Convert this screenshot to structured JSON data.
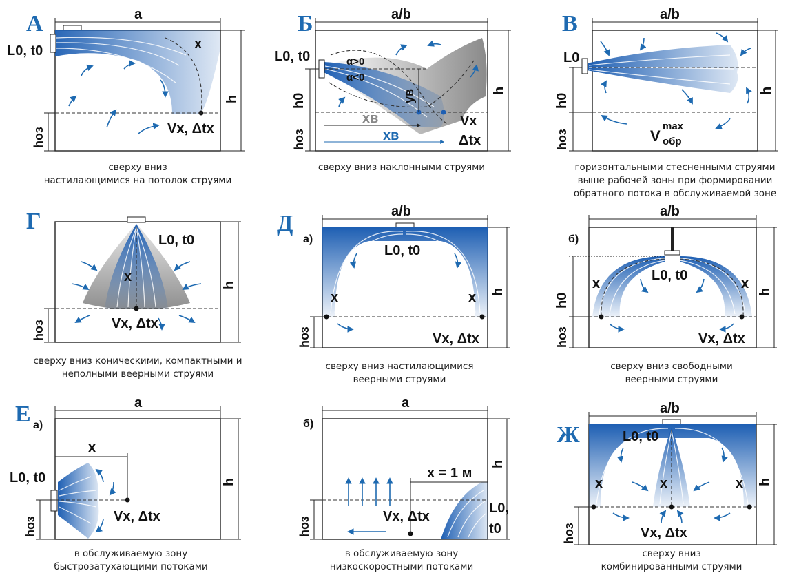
{
  "colors": {
    "jet_blue": "#1e5fb3",
    "arrow_blue": "#1e6ab1",
    "grey_jet": "#9a9a9a",
    "letter_blue": "#1e6ab1"
  },
  "panels": {
    "A": {
      "letter": "А",
      "width_label": "a",
      "height_label": "h",
      "zone_label": "hоз",
      "source_label": "L0, t0",
      "x_label": "x",
      "point_label": "Vx, Δtx",
      "caption": [
        "сверху вниз",
        "настилающимися на потолок струями"
      ]
    },
    "B": {
      "letter": "Б",
      "width_label": "a/b",
      "height_label": "h",
      "h0_label": "h0",
      "zone_label": "hоз",
      "source_label": "L0, t0",
      "angle_pos": "α>0",
      "angle_neg": "α<0",
      "yb_label": "yв",
      "xb_grey": "xв",
      "xb_blue": "xв",
      "point_label_1": "Vx",
      "point_label_2": "Δtx",
      "caption": [
        "сверху вниз наклонными струями"
      ]
    },
    "V": {
      "letter": "В",
      "width_label": "a/b",
      "height_label": "h",
      "h0_label": "h0",
      "zone_label": "hоз",
      "source_label": "L0",
      "v_label": "V",
      "v_sup": "max",
      "v_sub": "обр",
      "caption": [
        "горизонтальными стесненными струями",
        "выше рабочей зоны при формировании",
        "обратного потока в обслуживаемой зоне"
      ]
    },
    "G": {
      "letter": "Г",
      "height_label": "h",
      "zone_label": "hоз",
      "source_label": "L0, t0",
      "x_label": "x",
      "point_label": "Vx, Δtx",
      "caption": [
        "сверху вниз коническими, компактными и",
        "неполными веерными струями"
      ]
    },
    "D_a": {
      "letter": "Д",
      "sub": "а)",
      "width_label": "a/b",
      "height_label": "h",
      "zone_label": "hоз",
      "source_label": "L0, t0",
      "x_label": "x",
      "point_label": "Vx, Δtx",
      "caption": [
        "сверху вниз настилающимися",
        "веерными струями"
      ]
    },
    "D_b": {
      "sub": "б)",
      "width_label": "a/b",
      "height_label": "h",
      "h0_label": "h0",
      "zone_label": "hоз",
      "source_label": "L0, t0",
      "x_label": "x",
      "point_label": "Vx, Δtx",
      "caption": [
        "сверху вниз свободными",
        "веерными струями"
      ]
    },
    "E_a": {
      "letter": "Е",
      "sub": "а)",
      "width_label": "a",
      "height_label": "h",
      "zone_label": "hоз",
      "source_label": "L0, t0",
      "x_label": "x",
      "point_label": "Vx, Δtx",
      "caption": [
        "в обслуживаемую зону",
        "быстрозатухающими потоками"
      ]
    },
    "E_b": {
      "sub": "б)",
      "width_label": "a",
      "height_label": "h",
      "zone_label": "hоз",
      "x_label": "x = 1 м",
      "source_label_1": "L0,",
      "source_label_2": "t0",
      "point_label": "Vx, Δtx",
      "caption": [
        "в обслуживаемую зону",
        "низкоскоростными потоками"
      ]
    },
    "Zh": {
      "letter": "Ж",
      "width_label": "a/b",
      "height_label": "h",
      "zone_label": "hоз",
      "source_label": "L0, t0",
      "x_label": "x",
      "point_label": "Vx, Δtx",
      "caption": [
        "сверху вниз",
        "комбинированными струями"
      ]
    }
  }
}
